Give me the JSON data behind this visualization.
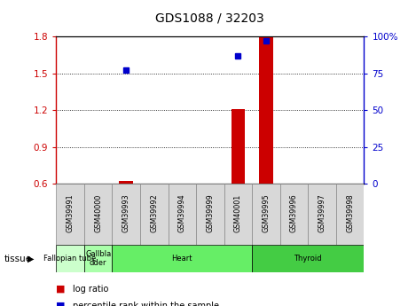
{
  "title": "GDS1088 / 32203",
  "samples": [
    "GSM39991",
    "GSM40000",
    "GSM39993",
    "GSM39992",
    "GSM39994",
    "GSM39999",
    "GSM40001",
    "GSM39995",
    "GSM39996",
    "GSM39997",
    "GSM39998"
  ],
  "log_ratio": [
    null,
    null,
    0.62,
    null,
    null,
    null,
    1.21,
    1.8,
    null,
    null,
    null
  ],
  "percentile_rank": [
    null,
    null,
    77,
    null,
    null,
    null,
    87,
    97,
    null,
    null,
    null
  ],
  "ylim_left": [
    0.6,
    1.8
  ],
  "ylim_right": [
    0,
    100
  ],
  "yticks_left": [
    0.6,
    0.9,
    1.2,
    1.5,
    1.8
  ],
  "yticks_right": [
    0,
    25,
    50,
    75,
    100
  ],
  "ytick_labels_right": [
    "0",
    "25",
    "50",
    "75",
    "100%"
  ],
  "tissue_groups": [
    {
      "label": "Fallopian tube",
      "start": 0,
      "end": 1,
      "color": "#ccffcc"
    },
    {
      "label": "Gallbla\ndder",
      "start": 1,
      "end": 2,
      "color": "#aaffaa"
    },
    {
      "label": "Heart",
      "start": 2,
      "end": 7,
      "color": "#66ee66"
    },
    {
      "label": "Thyroid",
      "start": 7,
      "end": 11,
      "color": "#44cc44"
    }
  ],
  "bar_color": "#cc0000",
  "dot_color": "#0000cc",
  "grid_color": "#000000",
  "left_axis_color": "#cc0000",
  "right_axis_color": "#0000cc",
  "background_color": "#ffffff",
  "plot_bg_color": "#ffffff",
  "legend_log_ratio_color": "#cc0000",
  "legend_percentile_color": "#0000cc",
  "sample_cell_color": "#d8d8d8",
  "tissue_fallopian_color": "#ccffcc",
  "tissue_gallbladder_color": "#aaffaa",
  "tissue_heart_color": "#66ee66",
  "tissue_thyroid_color": "#44cc44"
}
